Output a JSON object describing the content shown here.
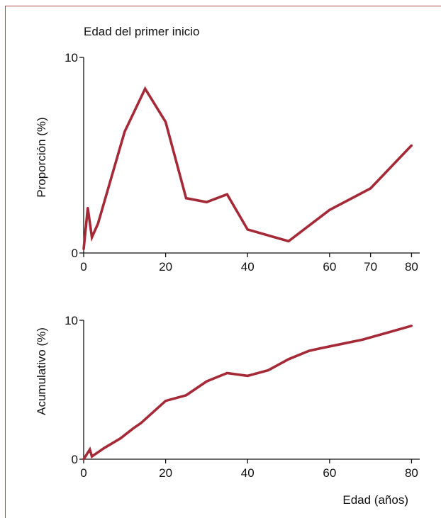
{
  "colors": {
    "line": "#a42a38",
    "frame": "#b0414d",
    "axis": "#111111"
  },
  "chart_data": [
    {
      "type": "line",
      "title": "Edad del primer inicio",
      "xlabel": "",
      "ylabel": "Proporción (%)",
      "xlim": [
        0,
        82
      ],
      "ylim": [
        0,
        10
      ],
      "xticks": [
        0,
        20,
        40,
        60,
        70,
        80
      ],
      "yticks": [
        0,
        10
      ],
      "grid": false,
      "series": [
        {
          "x": [
            0,
            1,
            2,
            3.5,
            10,
            15,
            20,
            25,
            30,
            35,
            40,
            50,
            60,
            70,
            80
          ],
          "y": [
            0.2,
            2.3,
            0.8,
            1.5,
            6.2,
            8.4,
            6.7,
            2.8,
            2.6,
            3.0,
            1.2,
            0.6,
            2.2,
            3.3,
            5.5
          ]
        }
      ]
    },
    {
      "type": "line",
      "title": "",
      "xlabel": "Edad (años)",
      "ylabel": "Acumulativo (%)",
      "xlim": [
        0,
        82
      ],
      "ylim": [
        0,
        10
      ],
      "xticks": [
        0,
        20,
        40,
        60,
        80
      ],
      "yticks": [
        0,
        10
      ],
      "grid": false,
      "series": [
        {
          "x": [
            0,
            1.5,
            2,
            5,
            9,
            12,
            14,
            20,
            25,
            30,
            35,
            40,
            45,
            50,
            55,
            58,
            63,
            68,
            74,
            80
          ],
          "y": [
            0,
            0.7,
            0.2,
            0.8,
            1.5,
            2.2,
            2.6,
            4.2,
            4.6,
            5.6,
            6.2,
            6.0,
            6.4,
            7.2,
            7.8,
            8.0,
            8.3,
            8.6,
            9.1,
            9.6
          ]
        }
      ]
    }
  ]
}
